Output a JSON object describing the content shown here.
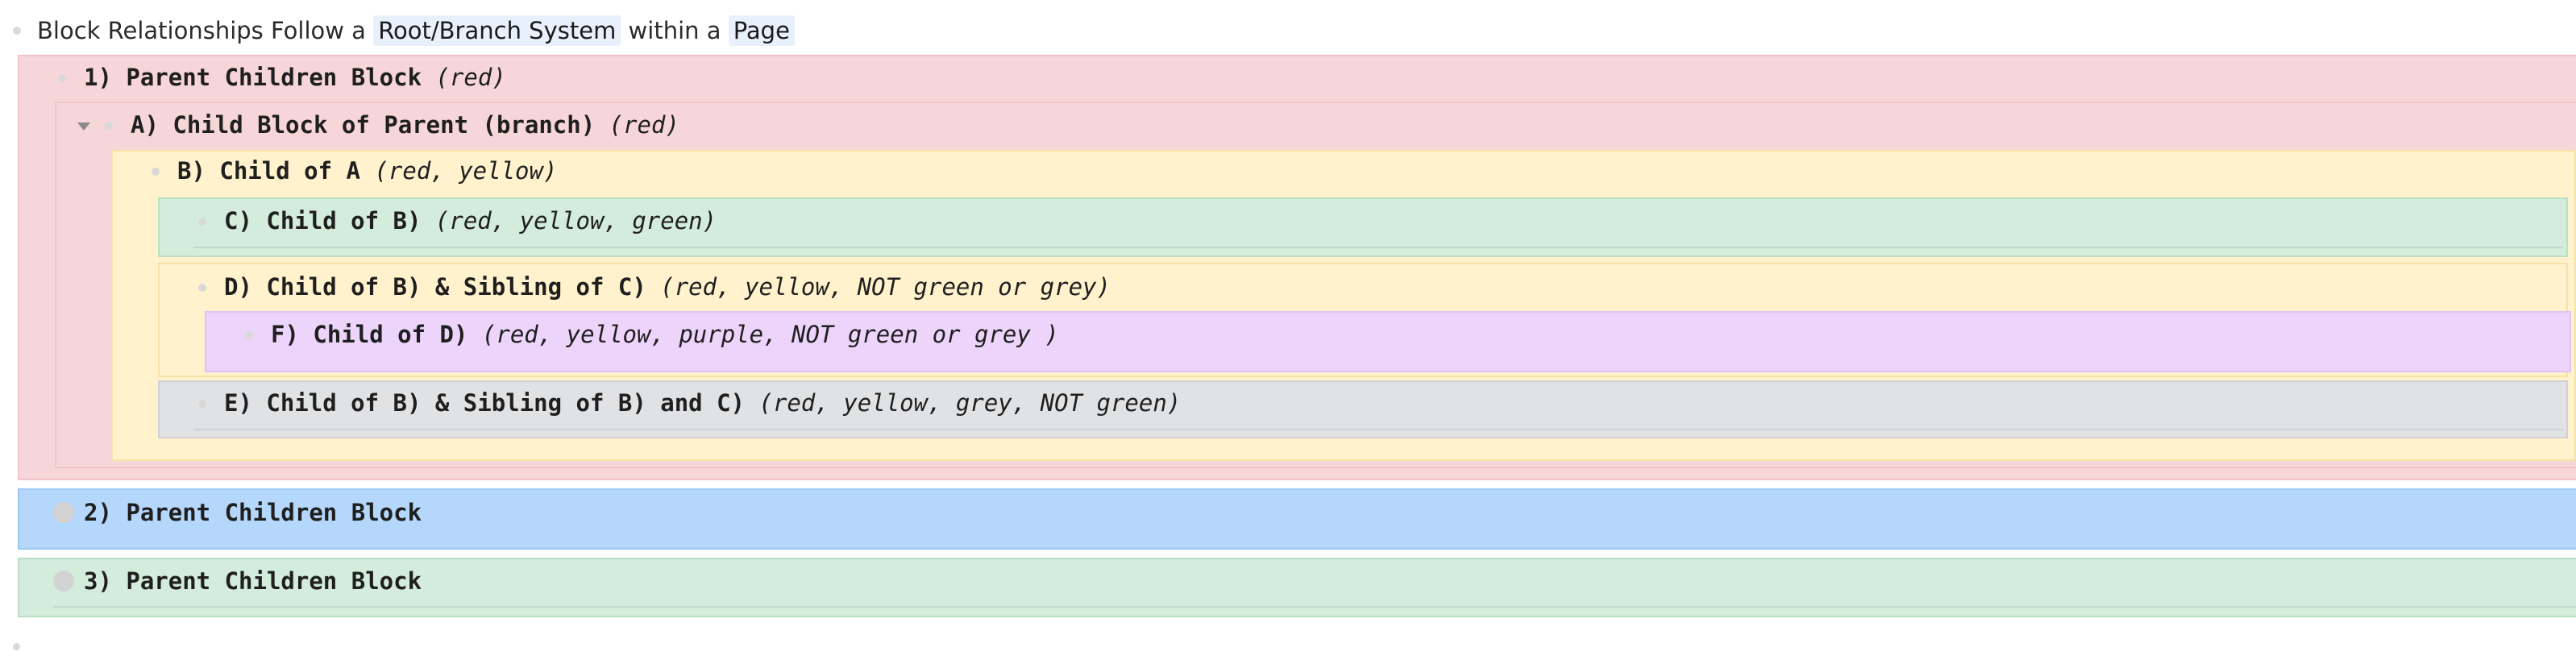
{
  "title": {
    "prefix": "Block Relationships Follow a ",
    "ref1": "Root/Branch System",
    "middle": " within a ",
    "ref2": "Page"
  },
  "blocks": {
    "p1": {
      "label": "1) Parent Children Block",
      "note": "(red)"
    },
    "a": {
      "label": "A) Child Block of Parent (branch)",
      "note": "(red)"
    },
    "b": {
      "label": "B) Child of A",
      "note": "(red, yellow)"
    },
    "c": {
      "label": "C) Child of B)",
      "note": "(red, yellow, green)"
    },
    "d": {
      "label": "D) Child of B) & Sibling of C)",
      "note": "(red, yellow, NOT green or grey)"
    },
    "f": {
      "label": "F) Child of D)",
      "note": "(red, yellow, purple, NOT green or grey )"
    },
    "e": {
      "label": "E) Child of B) & Sibling of B) and C)",
      "note": "(red, yellow, grey, NOT green)"
    },
    "p2": {
      "label": "2) Parent Children Block"
    },
    "p3": {
      "label": "3) Parent Children Block"
    }
  },
  "colors": {
    "red": "#f7d6da",
    "yellow": "#fff2cc",
    "green": "#d3ecdb",
    "purple": "#ecd4fa",
    "grey": "#e1e2e4",
    "blue": "#b5d7fc"
  }
}
